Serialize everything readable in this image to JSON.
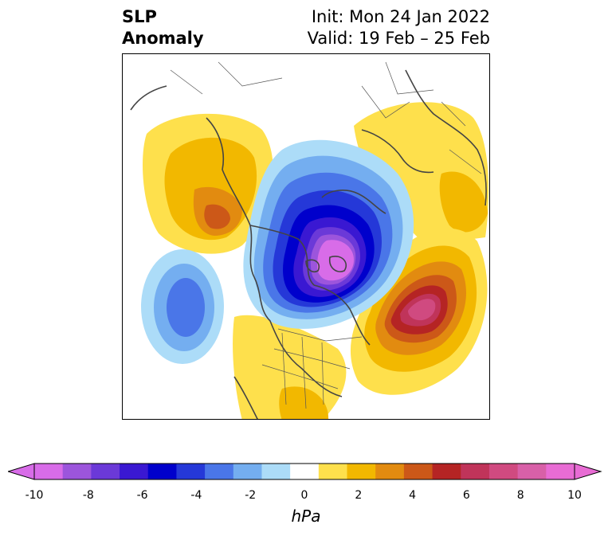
{
  "title": {
    "left_line1": "SLP",
    "left_line2": "Anomaly",
    "right_line1": "Init: Mon 24 Jan 2022",
    "right_line2": "Valid: 19 Feb – 25 Feb"
  },
  "colorbar": {
    "units": "hPa",
    "ticks": [
      "-10",
      "-8",
      "-6",
      "-4",
      "-2",
      "0",
      "2",
      "4",
      "6",
      "8",
      "10"
    ],
    "levels": [
      -10,
      -9,
      -8,
      -7,
      -6,
      -5,
      -4,
      -3,
      -2,
      -1,
      1,
      2,
      3,
      4,
      5,
      6,
      7,
      8,
      9,
      10
    ],
    "colors": [
      "#d86ce8",
      "#9c55dc",
      "#6b39d8",
      "#3a18d2",
      "#0000cc",
      "#2538d8",
      "#4a76e8",
      "#74aef0",
      "#acdcf8",
      "#ffffff",
      "#fee04c",
      "#f2b800",
      "#e28b10",
      "#cc5818",
      "#b52424",
      "#c0345a",
      "#d04a80",
      "#d860a8",
      "#e86cd4"
    ],
    "extend_min_color": "#d86ce8",
    "extend_max_color": "#e86cd4"
  },
  "map": {
    "projection": "north polar stereographic",
    "features": [
      "coastlines",
      "country borders",
      "US state borders"
    ],
    "anomaly_centers": [
      {
        "region": "central Arctic / Canadian Arctic",
        "sign": "negative",
        "min_hpa": -10
      },
      {
        "region": "North Atlantic west of Europe",
        "sign": "positive",
        "max_hpa": 9
      },
      {
        "region": "Siberia / East Asia",
        "sign": "positive",
        "max_hpa": 5
      },
      {
        "region": "North Pacific / Gulf of Alaska",
        "sign": "negative",
        "min_hpa": -5
      },
      {
        "region": "Eastern Europe",
        "sign": "positive",
        "max_hpa": 2
      },
      {
        "region": "Southeastern United States",
        "sign": "positive",
        "max_hpa": 2
      }
    ]
  }
}
